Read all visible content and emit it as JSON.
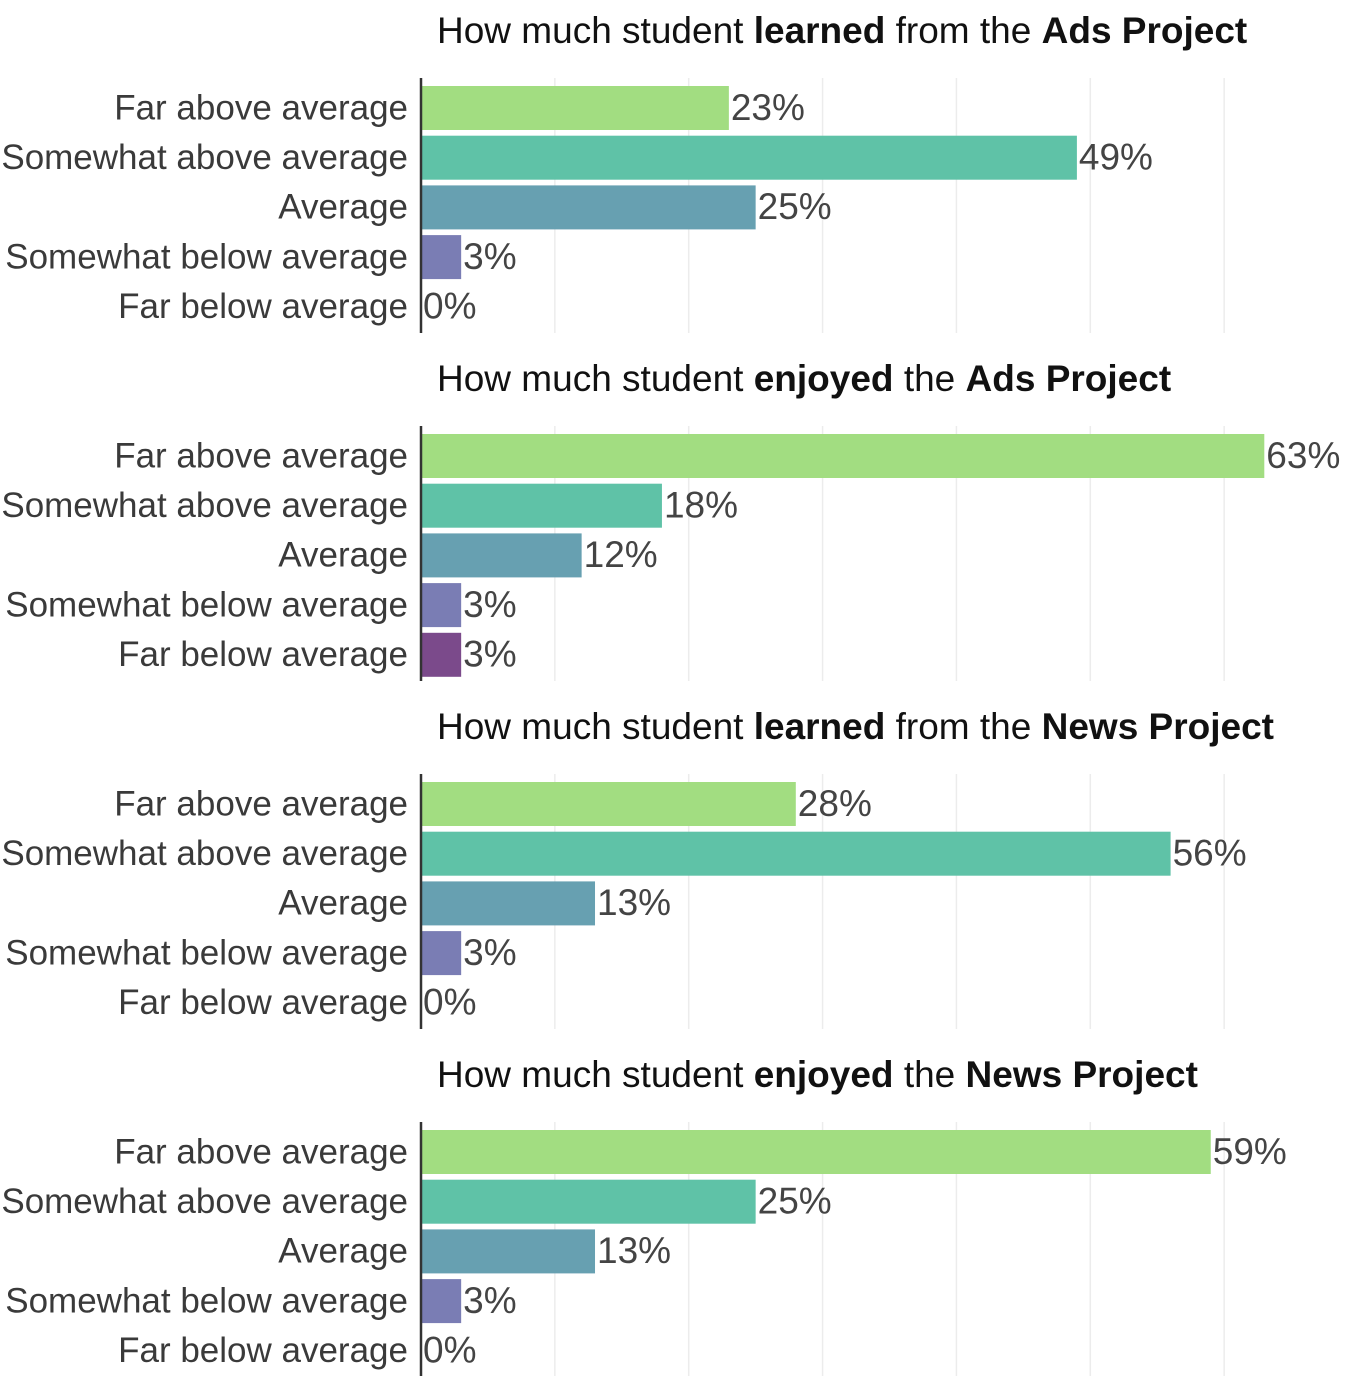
{
  "chart_data": [
    {
      "type": "bar",
      "horizontal": true,
      "title": [
        "How much student ",
        "learned",
        " from the ",
        "Ads Project"
      ],
      "title_bold": [
        false,
        true,
        false,
        true
      ],
      "categories": [
        "Far above average",
        "Somewhat above average",
        "Average",
        "Somewhat below average",
        "Far below average"
      ],
      "values": [
        23,
        49,
        25,
        3,
        0
      ],
      "value_labels": [
        "23%",
        "49%",
        "25%",
        "3%",
        "0%"
      ],
      "colors": [
        "#a2dd81",
        "#5fc2a7",
        "#67a0b1",
        "#7a7db4",
        "#7b4a8b"
      ],
      "xlim": [
        0,
        70
      ],
      "xticks": [
        0,
        10,
        20,
        30,
        40,
        50,
        60
      ],
      "grid": true
    },
    {
      "type": "bar",
      "horizontal": true,
      "title": [
        "How much student ",
        "enjoyed",
        " the ",
        "Ads Project"
      ],
      "title_bold": [
        false,
        true,
        false,
        true
      ],
      "categories": [
        "Far above average",
        "Somewhat above average",
        "Average",
        "Somewhat below average",
        "Far below average"
      ],
      "values": [
        63,
        18,
        12,
        3,
        3
      ],
      "value_labels": [
        "63%",
        "18%",
        "12%",
        "3%",
        "3%"
      ],
      "colors": [
        "#a2dd81",
        "#5fc2a7",
        "#67a0b1",
        "#7a7db4",
        "#7b4a8b"
      ],
      "xlim": [
        0,
        70
      ],
      "xticks": [
        0,
        10,
        20,
        30,
        40,
        50,
        60
      ],
      "grid": true
    },
    {
      "type": "bar",
      "horizontal": true,
      "title": [
        "How much student ",
        "learned",
        " from the ",
        "News Project"
      ],
      "title_bold": [
        false,
        true,
        false,
        true
      ],
      "categories": [
        "Far above average",
        "Somewhat above average",
        "Average",
        "Somewhat below average",
        "Far below average"
      ],
      "values": [
        28,
        56,
        13,
        3,
        0
      ],
      "value_labels": [
        "28%",
        "56%",
        "13%",
        "3%",
        "0%"
      ],
      "colors": [
        "#a2dd81",
        "#5fc2a7",
        "#67a0b1",
        "#7a7db4",
        "#7b4a8b"
      ],
      "xlim": [
        0,
        70
      ],
      "xticks": [
        0,
        10,
        20,
        30,
        40,
        50,
        60
      ],
      "grid": true
    },
    {
      "type": "bar",
      "horizontal": true,
      "title": [
        "How much student ",
        "enjoyed",
        " the ",
        "News Project"
      ],
      "title_bold": [
        false,
        true,
        false,
        true
      ],
      "categories": [
        "Far above average",
        "Somewhat above average",
        "Average",
        "Somewhat below average",
        "Far below average"
      ],
      "values": [
        59,
        25,
        13,
        3,
        0
      ],
      "value_labels": [
        "59%",
        "25%",
        "13%",
        "3%",
        "0%"
      ],
      "colors": [
        "#a2dd81",
        "#5fc2a7",
        "#67a0b1",
        "#7a7db4",
        "#7b4a8b"
      ],
      "xlim": [
        0,
        70
      ],
      "xticks": [
        0,
        10,
        20,
        30,
        40,
        50,
        60
      ],
      "grid": true
    }
  ]
}
